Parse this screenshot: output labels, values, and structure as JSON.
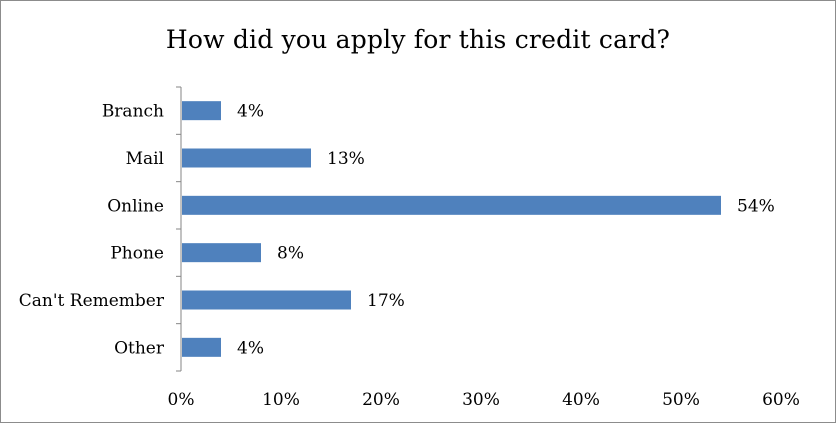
{
  "chart_data": {
    "type": "bar",
    "orientation": "horizontal",
    "title": "How did you apply for this credit card?",
    "categories": [
      "Branch",
      "Mail",
      "Online",
      "Phone",
      "Can't Remember",
      "Other"
    ],
    "values": [
      4,
      13,
      54,
      8,
      17,
      4
    ],
    "value_labels": [
      "4%",
      "13%",
      "54%",
      "8%",
      "17%",
      "4%"
    ],
    "xlim": [
      0,
      60
    ],
    "x_ticks": [
      0,
      10,
      20,
      30,
      40,
      50,
      60
    ],
    "x_tick_labels": [
      "0%",
      "10%",
      "20%",
      "30%",
      "40%",
      "50%",
      "60%"
    ],
    "xlabel": "",
    "ylabel": "",
    "grid": false,
    "legend": "none",
    "bar_color": "#4f81bd"
  }
}
